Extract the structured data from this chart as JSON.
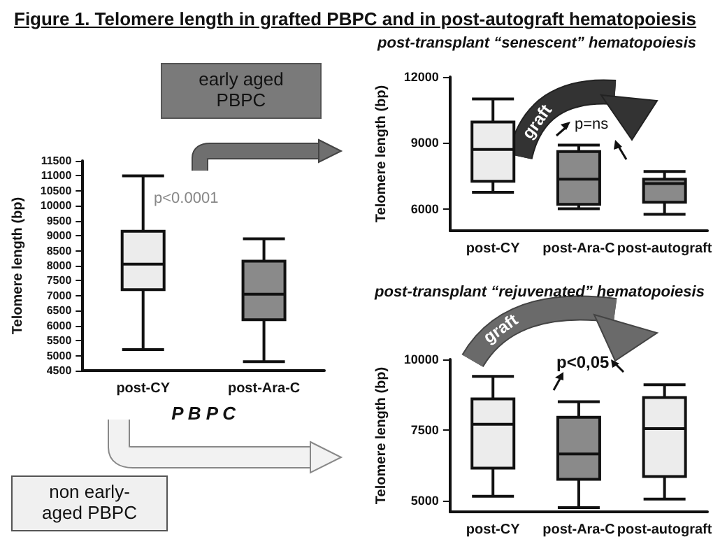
{
  "chart_data": [
    {
      "type": "box",
      "title": "Figure 1.  Telomere length in grafted PBPC and in post-autograft hematopoiesis",
      "categories": [
        "post-CY",
        "post-Ara-C"
      ],
      "xlabel": "P B P C",
      "ylabel": "Telomere length (bp)",
      "boxes": [
        {
          "low": 5200,
          "q1": 7200,
          "median": 8050,
          "q3": 9150,
          "high": 11000
        },
        {
          "low": 4800,
          "q1": 6200,
          "median": 7050,
          "q3": 8150,
          "high": 8900
        }
      ],
      "colors": [
        "#ececec",
        "#8a8a8a"
      ],
      "ylim": [
        4500,
        11500
      ],
      "yticks": [
        4500,
        5000,
        5500,
        6000,
        6500,
        7000,
        7500,
        8000,
        8500,
        9000,
        9500,
        10000,
        10500,
        11000,
        11500
      ],
      "annotations": [
        "early aged PBPC",
        "non early-aged PBPC",
        "p<0.0001"
      ]
    },
    {
      "type": "box",
      "title": "post-transplant “senescent” hematopoiesis",
      "categories": [
        "post-CY",
        "post-Ara-C",
        "post-autograft"
      ],
      "ylabel": "Telomere length (bp)",
      "boxes": [
        {
          "low": 6750,
          "q1": 7250,
          "median": 8700,
          "q3": 9950,
          "high": 11000
        },
        {
          "low": 6000,
          "q1": 6200,
          "median": 7350,
          "q3": 8600,
          "high": 8900
        },
        {
          "low": 5750,
          "q1": 6300,
          "median": 7150,
          "q3": 7350,
          "high": 7700
        }
      ],
      "colors": [
        "#ececec",
        "#8a8a8a",
        "#8a8a8a"
      ],
      "ylim": [
        5000,
        12000
      ],
      "yticks": [
        6000,
        9000,
        12000
      ],
      "annotations": [
        "graft",
        "p=ns"
      ]
    },
    {
      "type": "box",
      "title": "post-transplant “rejuvenated” hematopoiesis",
      "categories": [
        "post-CY",
        "post-Ara-C",
        "post-autograft"
      ],
      "ylabel": "Telomere length (bp)",
      "boxes": [
        {
          "low": 5150,
          "q1": 6150,
          "median": 7700,
          "q3": 8600,
          "high": 9400
        },
        {
          "low": 4750,
          "q1": 5750,
          "median": 6650,
          "q3": 7950,
          "high": 8500
        },
        {
          "low": 5050,
          "q1": 5850,
          "median": 7550,
          "q3": 8650,
          "high": 9100
        }
      ],
      "colors": [
        "#ececec",
        "#8a8a8a",
        "#ececec"
      ],
      "ylim": [
        4600,
        10000
      ],
      "yticks": [
        5000,
        7500,
        10000
      ],
      "annotations": [
        "graft",
        "p<0,05"
      ]
    }
  ]
}
